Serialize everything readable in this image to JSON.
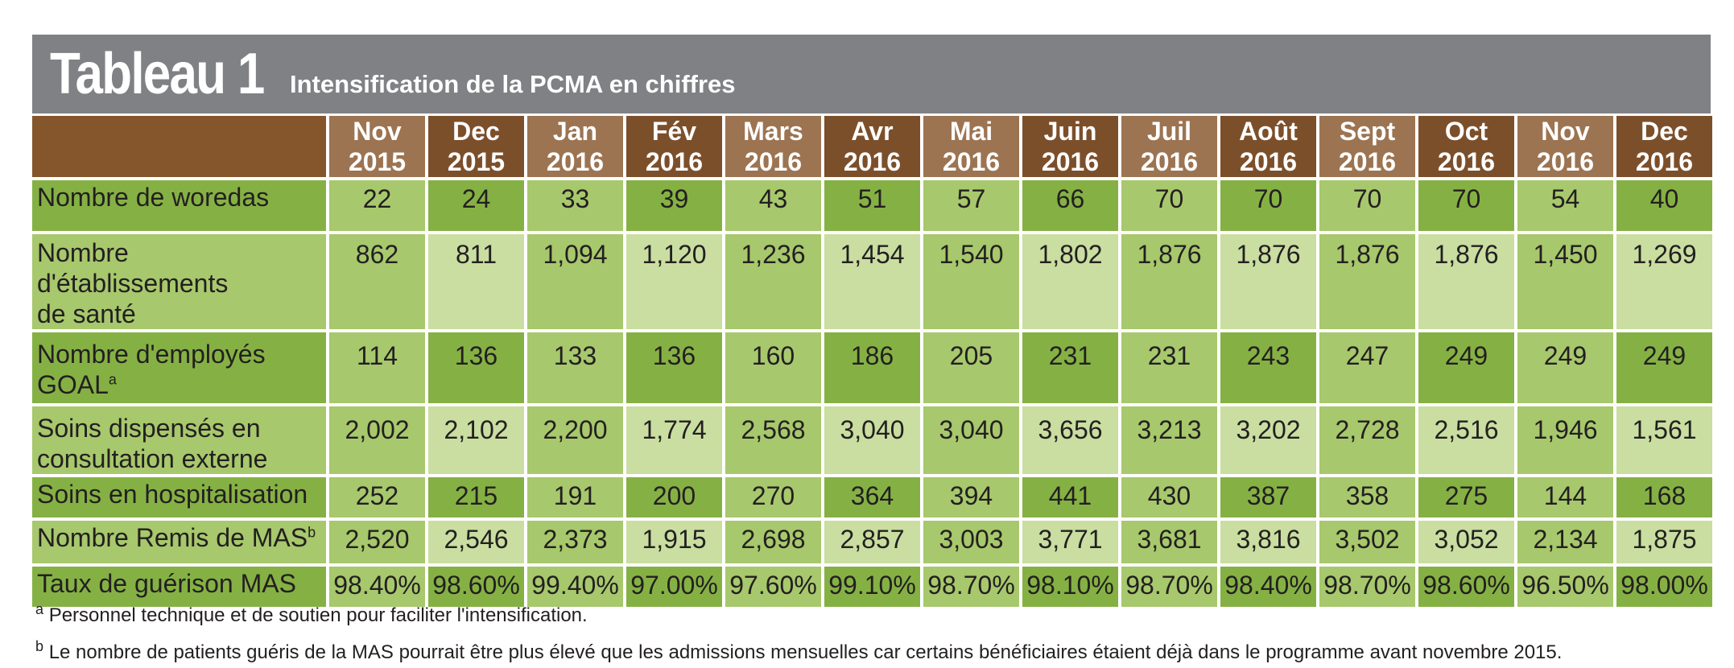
{
  "title": {
    "main": "Tableau 1",
    "subtitle": "Intensification de la PCMA en chiffres"
  },
  "table": {
    "columns": [
      {
        "month": "Nov",
        "year": "2015"
      },
      {
        "month": "Dec",
        "year": "2015"
      },
      {
        "month": "Jan",
        "year": "2016"
      },
      {
        "month": "Fév",
        "year": "2016"
      },
      {
        "month": "Mars",
        "year": "2016"
      },
      {
        "month": "Avr",
        "year": "2016"
      },
      {
        "month": "Mai",
        "year": "2016"
      },
      {
        "month": "Juin",
        "year": "2016"
      },
      {
        "month": "Juil",
        "year": "2016"
      },
      {
        "month": "Août",
        "year": "2016"
      },
      {
        "month": "Sept",
        "year": "2016"
      },
      {
        "month": "Oct",
        "year": "2016"
      },
      {
        "month": "Nov",
        "year": "2016"
      },
      {
        "month": "Dec",
        "year": "2016"
      }
    ],
    "rows": [
      {
        "label_line1": "Nombre de woredas",
        "label_line2": "",
        "footnote": "",
        "values": [
          "22",
          "24",
          "33",
          "39",
          "43",
          "51",
          "57",
          "66",
          "70",
          "70",
          "70",
          "70",
          "54",
          "40"
        ]
      },
      {
        "label_line1": "Nombre d'établissements",
        "label_line2": "de santé",
        "footnote": "",
        "values": [
          "862",
          "811",
          "1,094",
          "1,120",
          "1,236",
          "1,454",
          "1,540",
          "1,802",
          "1,876",
          "1,876",
          "1,876",
          "1,876",
          "1,450",
          "1,269"
        ]
      },
      {
        "label_line1": "Nombre d'employés",
        "label_line2": "GOAL",
        "footnote": "a",
        "values": [
          "114",
          "136",
          "133",
          "136",
          "160",
          "186",
          "205",
          "231",
          "231",
          "243",
          "247",
          "249",
          "249",
          "249"
        ]
      },
      {
        "label_line1": "Soins dispensés en",
        "label_line2": "consultation externe",
        "footnote": "",
        "values": [
          "2,002",
          "2,102",
          "2,200",
          "1,774",
          "2,568",
          "3,040",
          "3,040",
          "3,656",
          "3,213",
          "3,202",
          "2,728",
          "2,516",
          "1,946",
          "1,561"
        ]
      },
      {
        "label_line1": "Soins en hospitalisation",
        "label_line2": "",
        "footnote": "",
        "values": [
          "252",
          "215",
          "191",
          "200",
          "270",
          "364",
          "394",
          "441",
          "430",
          "387",
          "358",
          "275",
          "144",
          "168"
        ]
      },
      {
        "label_line1": "Nombre Remis de MAS",
        "label_line2": "",
        "footnote": "b",
        "values": [
          "2,520",
          "2,546",
          "2,373",
          "1,915",
          "2,698",
          "2,857",
          "3,003",
          "3,771",
          "3,681",
          "3,816",
          "3,502",
          "3,052",
          "2,134",
          "1,875"
        ]
      },
      {
        "label_line1": "Taux de guérison MAS",
        "label_line2": "",
        "footnote": "",
        "values": [
          "98.40%",
          "98.60%",
          "99.40%",
          "97.00%",
          "97.60%",
          "99.10%",
          "98.70%",
          "98.10%",
          "98.70%",
          "98.40%",
          "98.70%",
          "98.60%",
          "96.50%",
          "98.00%"
        ]
      }
    ]
  },
  "footnotes": [
    {
      "marker": "a",
      "text": "Personnel technique et de soutien pour faciliter l'intensification."
    },
    {
      "marker": "b",
      "text": "Le nombre de patients guéris de la MAS pourrait être plus élevé que les admissions mensuelles car certains bénéficiaires étaient déjà dans le programme avant novembre 2015."
    }
  ]
}
